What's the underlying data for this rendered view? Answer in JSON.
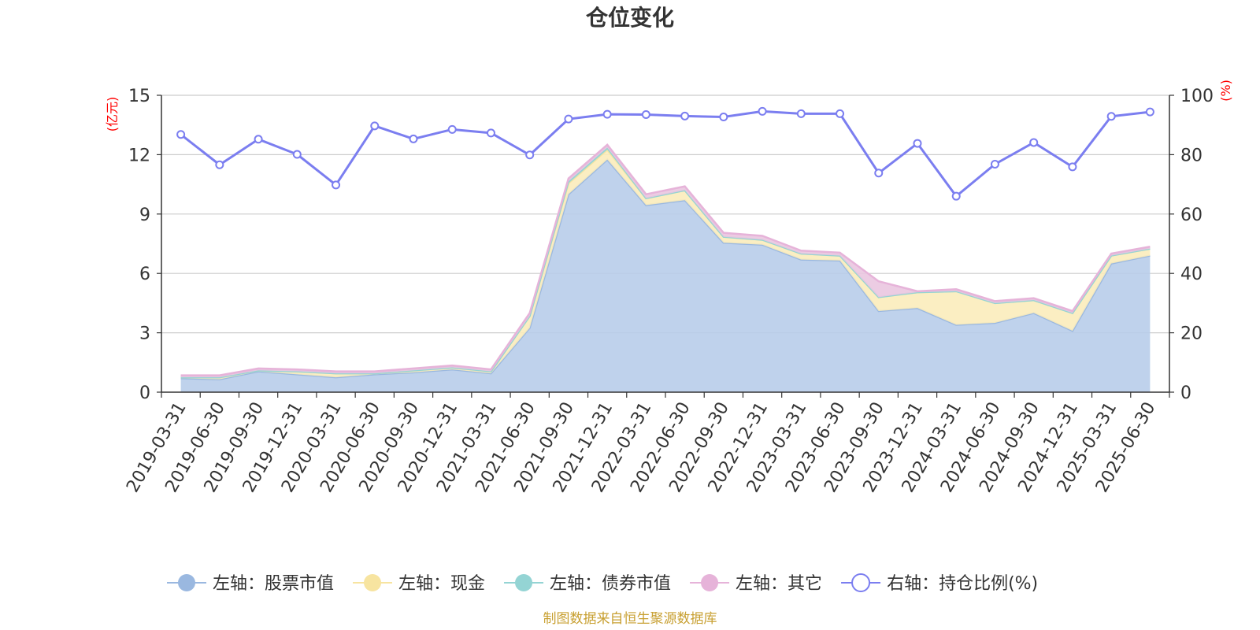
{
  "chart_data": {
    "type": "area",
    "title": "仓位变化",
    "left_axis_unit": "亿元",
    "right_axis_unit": "%",
    "source_text": "制图数据来自恒生聚源数据库",
    "x": [
      "2019-03-31",
      "2019-06-30",
      "2019-09-30",
      "2019-12-31",
      "2020-03-31",
      "2020-06-30",
      "2020-09-30",
      "2020-12-31",
      "2021-03-31",
      "2021-06-30",
      "2021-09-30",
      "2021-12-31",
      "2022-03-31",
      "2022-06-30",
      "2022-09-30",
      "2022-12-31",
      "2023-03-31",
      "2023-06-30",
      "2023-09-30",
      "2023-12-31",
      "2024-03-31",
      "2024-06-30",
      "2024-09-30",
      "2024-12-31",
      "2025-03-31",
      "2025-06-30"
    ],
    "ylim_left": [
      0,
      15
    ],
    "yticks_left": [
      "0",
      "3",
      "6",
      "9",
      "12",
      "15"
    ],
    "ylim_right": [
      0,
      100
    ],
    "yticks_right": [
      "0",
      "20",
      "40",
      "60",
      "80",
      "100"
    ],
    "grid": true,
    "legend_position": "bottom",
    "stacked_series": [
      {
        "name": "左轴：股票市值",
        "color": "#9ab8e0",
        "fill": "#b8cdea",
        "values": [
          0.7,
          0.65,
          1.05,
          0.9,
          0.75,
          0.9,
          1.0,
          1.15,
          0.95,
          3.25,
          10.0,
          11.75,
          9.45,
          9.7,
          7.55,
          7.45,
          6.7,
          6.65,
          4.1,
          4.25,
          3.4,
          3.5,
          4.0,
          3.1,
          6.5,
          6.9
        ]
      },
      {
        "name": "左轴：现金",
        "color": "#f7e4a0",
        "fill": "#fbecbb",
        "values": [
          0.05,
          0.1,
          0.05,
          0.15,
          0.2,
          0.05,
          0.1,
          0.1,
          0.1,
          0.6,
          0.55,
          0.5,
          0.35,
          0.5,
          0.3,
          0.25,
          0.3,
          0.25,
          0.7,
          0.8,
          1.7,
          1.0,
          0.65,
          0.9,
          0.4,
          0.35
        ]
      },
      {
        "name": "左轴：债券市值",
        "color": "#94d4d4",
        "fill": "#9fd8d6",
        "values": [
          0,
          0,
          0,
          0,
          0,
          0,
          0,
          0,
          0,
          0,
          0.1,
          0.1,
          0,
          0,
          0,
          0,
          0,
          0,
          0,
          0,
          0,
          0,
          0,
          0,
          0,
          0
        ]
      },
      {
        "name": "左轴：其它",
        "color": "#e6b3d9",
        "fill": "#eac6e0",
        "values": [
          0.1,
          0.1,
          0.1,
          0.1,
          0.1,
          0.1,
          0.1,
          0.1,
          0.1,
          0.15,
          0.15,
          0.15,
          0.2,
          0.2,
          0.2,
          0.2,
          0.15,
          0.15,
          0.8,
          0.05,
          0.1,
          0.1,
          0.1,
          0.1,
          0.1,
          0.1
        ]
      }
    ],
    "line_series": {
      "name": "右轴：持仓比例(%)",
      "axis": "right",
      "color": "#7b7ef0",
      "values": [
        86.8,
        76.6,
        85.2,
        80.1,
        69.8,
        89.7,
        85.3,
        88.5,
        87.3,
        79.9,
        92.0,
        93.6,
        93.5,
        93.0,
        92.7,
        94.6,
        93.8,
        93.8,
        73.8,
        83.8,
        66.0,
        76.8,
        84.1,
        75.9,
        92.9,
        94.4
      ]
    }
  }
}
